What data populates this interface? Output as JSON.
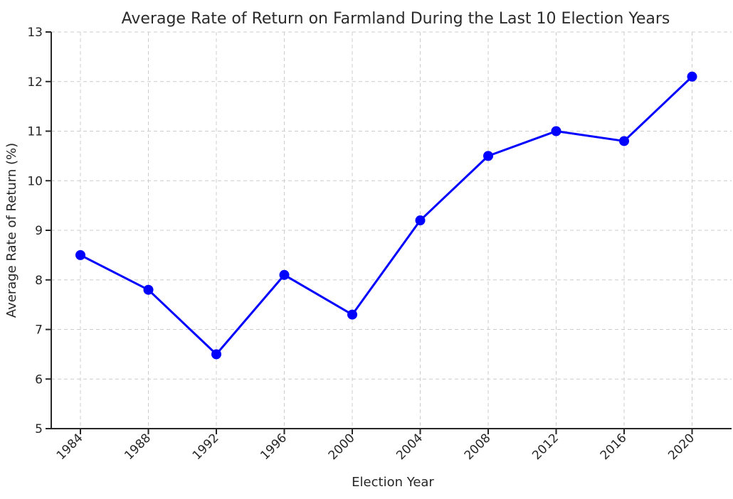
{
  "chart_data": {
    "type": "line",
    "title": "Average Rate of Return on Farmland During the Last 10 Election Years",
    "xlabel": "Election Year",
    "ylabel": "Average Rate of Return (%)",
    "categories": [
      "1984",
      "1988",
      "1992",
      "1996",
      "2000",
      "2004",
      "2008",
      "2012",
      "2016",
      "2020"
    ],
    "series": [
      {
        "name": "Average Rate of Return",
        "values": [
          8.5,
          7.8,
          6.5,
          8.1,
          7.3,
          9.2,
          10.5,
          11.0,
          10.8,
          12.1
        ]
      }
    ],
    "ylim": [
      5,
      13
    ],
    "yticks": [
      5,
      6,
      7,
      8,
      9,
      10,
      11,
      12,
      13
    ],
    "x_tick_rotation": 45,
    "grid": "both",
    "grid_style": "dashed",
    "legend_position": "none",
    "marker": "circle",
    "colors": {
      "line": "#0000ff",
      "marker": "#0000ff",
      "grid": "#cccccc",
      "spine": "#262626",
      "tick": "#262626",
      "text": "#262626",
      "title": "#2b2b2b",
      "background": "#ffffff"
    }
  }
}
